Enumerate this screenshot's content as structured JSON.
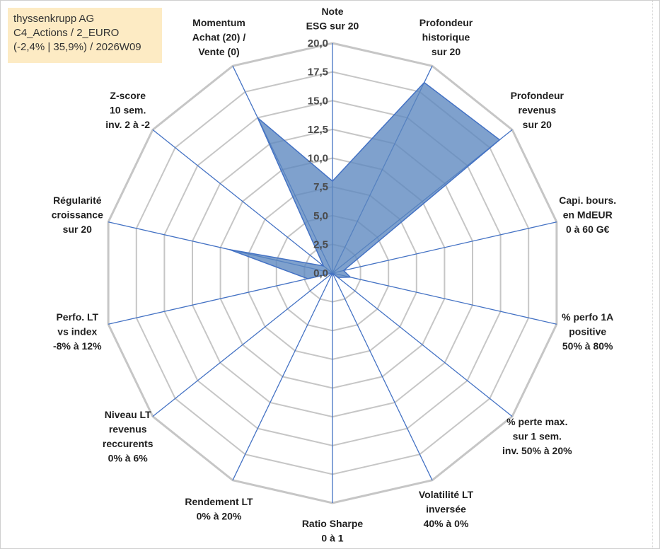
{
  "header": {
    "company": "thyssenkrupp AG",
    "category": "C4_Actions / 2_EURO",
    "perf": "(-2,4% | 35,9%) / 2026W09"
  },
  "chart_data": {
    "type": "radar",
    "rmax": 20,
    "ticks": [
      "0,0",
      "2,5",
      "5,0",
      "7,5",
      "10,0",
      "12,5",
      "15,0",
      "17,5",
      "20,0"
    ],
    "axes": [
      {
        "lines": [
          "Note",
          "ESG sur 20"
        ]
      },
      {
        "lines": [
          "Profondeur",
          "historique",
          "sur 20"
        ]
      },
      {
        "lines": [
          "Profondeur",
          "revenus",
          "sur 20"
        ]
      },
      {
        "lines": [
          "Capi. bours.",
          "en MdEUR",
          "0 à 60 G€"
        ]
      },
      {
        "lines": [
          "% perfo 1A",
          "positive",
          "50% à 80%"
        ]
      },
      {
        "lines": [
          "% perte max.",
          "sur 1 sem.",
          "inv. 50% à 20%"
        ]
      },
      {
        "lines": [
          "Volatilité LT",
          "inversée",
          "40% à 0%"
        ]
      },
      {
        "lines": [
          "Ratio Sharpe",
          "0 à 1"
        ]
      },
      {
        "lines": [
          "Rendement LT",
          "0% à 20%"
        ]
      },
      {
        "lines": [
          "Niveau LT",
          "revenus",
          "reccurents",
          "0% à 6%"
        ]
      },
      {
        "lines": [
          "Perfo. LT",
          "vs index",
          "-8% à 12%"
        ]
      },
      {
        "lines": [
          "Régularité",
          "croissance",
          "sur 20"
        ]
      },
      {
        "lines": [
          "Z-score",
          "10 sem.",
          "inv. 2 à -2"
        ]
      },
      {
        "lines": [
          "Momentum",
          "Achat (20) /",
          "Vente (0)"
        ]
      }
    ],
    "series": [
      {
        "values": [
          8.0,
          18.4,
          18.6,
          1.0,
          1.6,
          0.6,
          0.0,
          0.0,
          0.0,
          0.0,
          2.2,
          9.2,
          1.0,
          15.0
        ]
      }
    ],
    "colors": {
      "fill": "#5b86bf",
      "stroke": "#4472c4",
      "grid": "#c6c6c6",
      "spoke": "#4472c4"
    }
  }
}
